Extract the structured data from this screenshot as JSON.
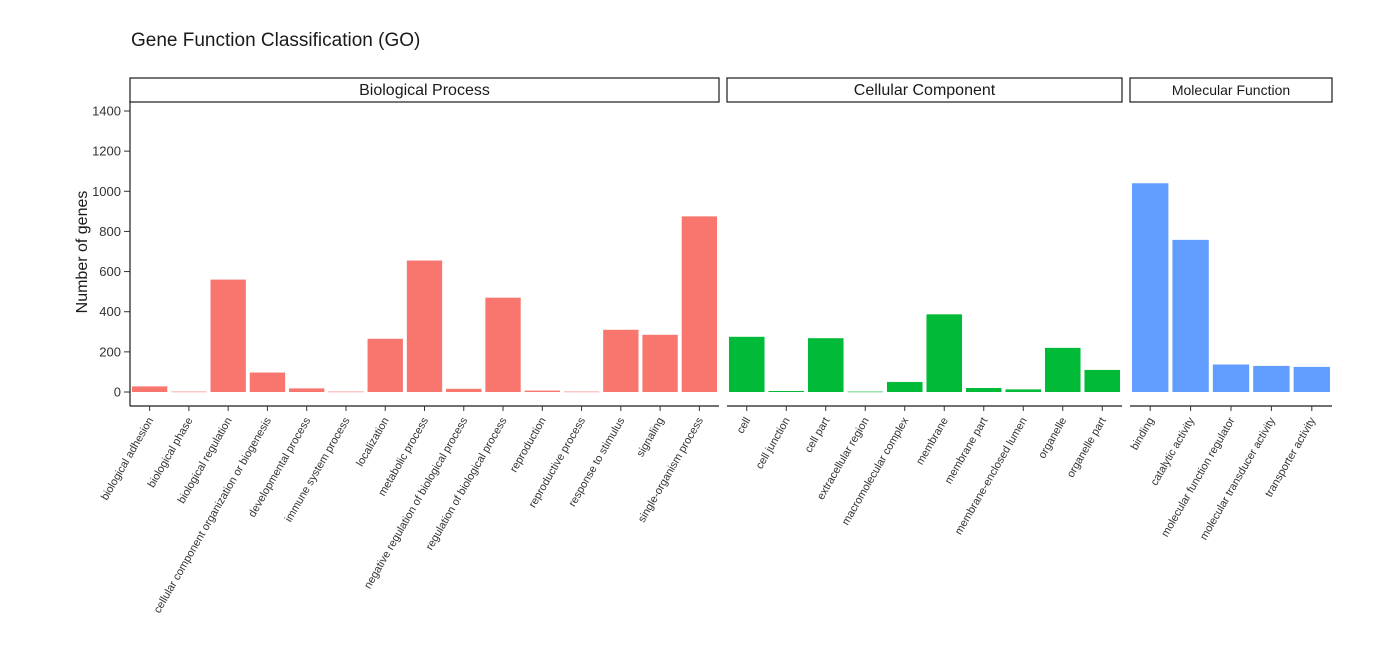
{
  "chart_data": {
    "type": "bar",
    "title": "Gene Function Classification (GO)",
    "ylabel": "Number of genes",
    "xlabel": "",
    "ylim": [
      0,
      1400
    ],
    "yticks": [
      0,
      200,
      400,
      600,
      800,
      1000,
      1200,
      1400
    ],
    "grid": false,
    "legend": "none",
    "panels": [
      {
        "name": "Biological Process",
        "color": "#F8766D",
        "categories": [
          "biological adhesion",
          "biological phase",
          "biological regulation",
          "cellular component organization or biogenesis",
          "developmental process",
          "immune system process",
          "localization",
          "metabolic process",
          "negative regulation of biological process",
          "regulation of biological process",
          "reproduction",
          "reproductive process",
          "response to stimulus",
          "signaling",
          "single-organism process"
        ],
        "values": [
          28,
          2,
          560,
          97,
          18,
          2,
          265,
          655,
          16,
          470,
          7,
          2,
          310,
          285,
          875
        ]
      },
      {
        "name": "Cellular Component",
        "color": "#00BA38",
        "categories": [
          "cell",
          "cell junction",
          "cell part",
          "extracellular region",
          "macromolecular complex",
          "membrane",
          "membrane part",
          "membrane-enclosed lumen",
          "organelle",
          "organelle part"
        ],
        "values": [
          275,
          5,
          268,
          2,
          50,
          387,
          20,
          13,
          220,
          110
        ]
      },
      {
        "name": "Molecular Function",
        "color": "#619CFF",
        "categories": [
          "binding",
          "catalytic activity",
          "molecular function regulator",
          "molecular transducer activity",
          "transporter activity"
        ],
        "values": [
          1040,
          758,
          137,
          130,
          125
        ]
      }
    ]
  }
}
